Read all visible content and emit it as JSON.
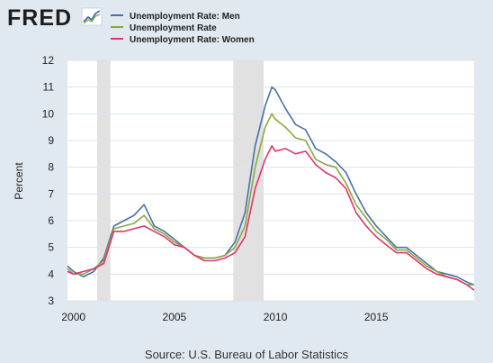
{
  "brand": {
    "logo_text": "FRED"
  },
  "source": "Source: U.S. Bureau of Labor Statistics",
  "colors": {
    "Unemployment Rate: Men": "#4572a7",
    "Unemployment Rate": "#8aa83d",
    "Unemployment Rate: Women": "#e0336f",
    "recession": "#e1e1e1",
    "background": "#e1e9f0",
    "plot_background": "#ffffff",
    "grid": "#dde3ea"
  },
  "chart_data": {
    "type": "line",
    "title": "",
    "xlabel": "",
    "ylabel": "Percent",
    "xlim": [
      1999.7,
      2019.85
    ],
    "ylim": [
      3,
      12
    ],
    "x_ticks": [
      2000,
      2005,
      2010,
      2015
    ],
    "y_ticks": [
      3,
      4,
      5,
      6,
      7,
      8,
      9,
      10,
      11,
      12
    ],
    "grid": true,
    "legend_position": "top-left",
    "recessions": [
      [
        2001.17,
        2001.83
      ],
      [
        2007.92,
        2009.42
      ]
    ],
    "series": [
      {
        "name": "Unemployment Rate: Men",
        "x": [
          1999.7,
          2000.0,
          2000.5,
          2001.0,
          2001.5,
          2002.0,
          2002.5,
          2003.0,
          2003.5,
          2004.0,
          2004.5,
          2005.0,
          2005.5,
          2006.0,
          2006.5,
          2007.0,
          2007.5,
          2008.0,
          2008.5,
          2009.0,
          2009.5,
          2009.83,
          2010.0,
          2010.5,
          2011.0,
          2011.5,
          2012.0,
          2012.5,
          2013.0,
          2013.5,
          2014.0,
          2014.5,
          2015.0,
          2015.5,
          2016.0,
          2016.5,
          2017.0,
          2017.5,
          2018.0,
          2018.5,
          2019.0,
          2019.5,
          2019.85
        ],
        "values": [
          4.3,
          4.1,
          3.9,
          4.1,
          4.6,
          5.8,
          6.0,
          6.2,
          6.6,
          5.8,
          5.6,
          5.3,
          5.0,
          4.7,
          4.6,
          4.6,
          4.7,
          5.2,
          6.3,
          8.8,
          10.3,
          11.0,
          10.9,
          10.2,
          9.6,
          9.4,
          8.7,
          8.5,
          8.2,
          7.8,
          7.0,
          6.3,
          5.8,
          5.4,
          5.0,
          5.0,
          4.7,
          4.4,
          4.1,
          4.0,
          3.9,
          3.7,
          3.6
        ]
      },
      {
        "name": "Unemployment Rate",
        "x": [
          1999.7,
          2000.0,
          2000.5,
          2001.0,
          2001.5,
          2002.0,
          2002.5,
          2003.0,
          2003.5,
          2004.0,
          2004.5,
          2005.0,
          2005.5,
          2006.0,
          2006.5,
          2007.0,
          2007.5,
          2008.0,
          2008.5,
          2009.0,
          2009.5,
          2009.83,
          2010.0,
          2010.5,
          2011.0,
          2011.5,
          2012.0,
          2012.5,
          2013.0,
          2013.5,
          2014.0,
          2014.5,
          2015.0,
          2015.5,
          2016.0,
          2016.5,
          2017.0,
          2017.5,
          2018.0,
          2018.5,
          2019.0,
          2019.5,
          2019.85
        ],
        "values": [
          4.2,
          4.0,
          4.0,
          4.2,
          4.5,
          5.7,
          5.8,
          5.9,
          6.2,
          5.7,
          5.5,
          5.2,
          5.0,
          4.7,
          4.6,
          4.6,
          4.7,
          5.0,
          5.8,
          8.0,
          9.5,
          10.0,
          9.8,
          9.5,
          9.1,
          9.0,
          8.3,
          8.1,
          8.0,
          7.4,
          6.6,
          6.1,
          5.6,
          5.3,
          4.9,
          4.9,
          4.6,
          4.3,
          4.1,
          3.9,
          3.8,
          3.6,
          3.6
        ]
      },
      {
        "name": "Unemployment Rate: Women",
        "x": [
          1999.7,
          2000.0,
          2000.5,
          2001.0,
          2001.5,
          2002.0,
          2002.5,
          2003.0,
          2003.5,
          2004.0,
          2004.5,
          2005.0,
          2005.5,
          2006.0,
          2006.5,
          2007.0,
          2007.5,
          2008.0,
          2008.5,
          2009.0,
          2009.5,
          2009.83,
          2010.0,
          2010.5,
          2011.0,
          2011.5,
          2012.0,
          2012.5,
          2013.0,
          2013.5,
          2014.0,
          2014.5,
          2015.0,
          2015.5,
          2016.0,
          2016.5,
          2017.0,
          2017.5,
          2018.0,
          2018.5,
          2019.0,
          2019.5,
          2019.85
        ],
        "values": [
          4.1,
          4.0,
          4.1,
          4.2,
          4.4,
          5.6,
          5.6,
          5.7,
          5.8,
          5.6,
          5.4,
          5.1,
          5.0,
          4.7,
          4.5,
          4.5,
          4.6,
          4.8,
          5.4,
          7.2,
          8.3,
          8.8,
          8.6,
          8.7,
          8.5,
          8.6,
          8.1,
          7.8,
          7.6,
          7.2,
          6.3,
          5.8,
          5.4,
          5.1,
          4.8,
          4.8,
          4.5,
          4.2,
          4.0,
          3.9,
          3.8,
          3.6,
          3.4
        ]
      }
    ]
  }
}
